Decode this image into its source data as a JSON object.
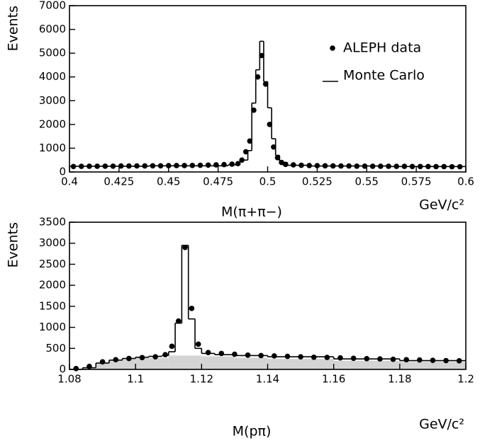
{
  "chart_data": [
    {
      "type": "histogram",
      "xlabel": "M(π+π−)",
      "x_unit": "GeV/c²",
      "ylabel": "Events",
      "xlim": [
        0.4,
        0.6
      ],
      "xticks": [
        0.4,
        0.425,
        0.45,
        0.475,
        0.5,
        0.525,
        0.55,
        0.575,
        0.6
      ],
      "ylim": [
        0,
        7000
      ],
      "yticks": [
        0,
        1000,
        2000,
        3000,
        4000,
        5000,
        6000,
        7000
      ],
      "legend": "upper right",
      "series": [
        {
          "name": "ALEPH data",
          "type": "scatter",
          "color": "#000000",
          "x": [
            0.402,
            0.406,
            0.41,
            0.414,
            0.418,
            0.422,
            0.426,
            0.43,
            0.434,
            0.438,
            0.442,
            0.446,
            0.45,
            0.454,
            0.458,
            0.462,
            0.466,
            0.47,
            0.474,
            0.478,
            0.482,
            0.485,
            0.487,
            0.489,
            0.491,
            0.493,
            0.495,
            0.497,
            0.499,
            0.501,
            0.503,
            0.505,
            0.507,
            0.509,
            0.513,
            0.517,
            0.521,
            0.525,
            0.529,
            0.533,
            0.537,
            0.541,
            0.545,
            0.549,
            0.553,
            0.557,
            0.561,
            0.565,
            0.569,
            0.573,
            0.577,
            0.581,
            0.585,
            0.589,
            0.593,
            0.597
          ],
          "values": [
            230,
            235,
            240,
            240,
            245,
            245,
            250,
            250,
            255,
            255,
            260,
            260,
            265,
            270,
            270,
            275,
            280,
            290,
            300,
            310,
            330,
            350,
            500,
            850,
            1300,
            2600,
            4000,
            4900,
            3700,
            2000,
            1050,
            600,
            400,
            320,
            300,
            280,
            270,
            265,
            260,
            255,
            250,
            250,
            245,
            245,
            240,
            240,
            240,
            235,
            235,
            230,
            230,
            230,
            225,
            225,
            220,
            220
          ]
        },
        {
          "name": "Monte Carlo",
          "type": "histogram",
          "color": "#000000",
          "bins": [
            0.4,
            0.44,
            0.48,
            0.486,
            0.49,
            0.492,
            0.494,
            0.496,
            0.498,
            0.5,
            0.502,
            0.504,
            0.506,
            0.51,
            0.52,
            0.56,
            0.6
          ],
          "values": [
            240,
            260,
            300,
            500,
            900,
            2900,
            4300,
            5500,
            3800,
            2700,
            1400,
            700,
            400,
            280,
            250,
            230
          ]
        }
      ]
    },
    {
      "type": "histogram",
      "xlabel": "M(pπ)",
      "x_unit": "GeV/c²",
      "ylabel": "Events",
      "xlim": [
        1.08,
        1.2
      ],
      "xticks": [
        1.08,
        1.1,
        1.12,
        1.14,
        1.16,
        1.18,
        1.2
      ],
      "ylim": [
        0,
        3500
      ],
      "yticks": [
        0,
        500,
        1000,
        1500,
        2000,
        2500,
        3000,
        3500
      ],
      "series": [
        {
          "type": "histogram",
          "color": "#d4d4d4",
          "filled": true,
          "bins": [
            1.08,
            1.084,
            1.088,
            1.092,
            1.096,
            1.1,
            1.11,
            1.12,
            1.13,
            1.14,
            1.16,
            1.18,
            1.2
          ],
          "values": [
            0,
            40,
            140,
            200,
            240,
            270,
            330,
            310,
            280,
            250,
            210,
            180
          ]
        },
        {
          "type": "scatter",
          "color": "#000000",
          "x": [
            1.082,
            1.086,
            1.09,
            1.094,
            1.098,
            1.102,
            1.106,
            1.109,
            1.111,
            1.113,
            1.115,
            1.117,
            1.119,
            1.122,
            1.126,
            1.13,
            1.134,
            1.138,
            1.142,
            1.146,
            1.15,
            1.154,
            1.158,
            1.162,
            1.166,
            1.17,
            1.174,
            1.178,
            1.182,
            1.186,
            1.19,
            1.194,
            1.198
          ],
          "values": [
            20,
            70,
            180,
            230,
            260,
            280,
            300,
            350,
            550,
            1150,
            2900,
            1450,
            600,
            400,
            380,
            360,
            340,
            330,
            320,
            310,
            300,
            290,
            285,
            275,
            265,
            255,
            250,
            240,
            230,
            225,
            215,
            210,
            205
          ]
        },
        {
          "type": "histogram",
          "color": "#000000",
          "bins": [
            1.08,
            1.084,
            1.088,
            1.092,
            1.096,
            1.1,
            1.104,
            1.108,
            1.11,
            1.112,
            1.114,
            1.116,
            1.118,
            1.12,
            1.124,
            1.13,
            1.14,
            1.16,
            1.18,
            1.2
          ],
          "values": [
            0,
            40,
            150,
            220,
            260,
            290,
            310,
            330,
            420,
            1100,
            2950,
            1200,
            500,
            380,
            350,
            330,
            300,
            250,
            210
          ]
        }
      ]
    }
  ]
}
